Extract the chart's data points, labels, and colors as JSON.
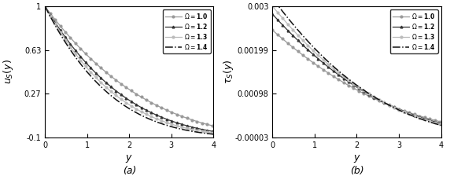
{
  "title_a": "(a)",
  "title_b": "(b)",
  "ylabel_a": "$u_S(y)$",
  "ylabel_b": "$\\tau_S(y)$",
  "xlabel": "$y$",
  "xlim": [
    0,
    4
  ],
  "ylim_a": [
    -0.1,
    1.0
  ],
  "ylim_b": [
    -3e-05,
    0.003
  ],
  "yticks_a": [
    -0.1,
    0.27,
    0.63,
    1.0
  ],
  "ytick_labels_a": [
    "-0.1",
    "0.27",
    "0.63",
    "1"
  ],
  "yticks_b": [
    -3e-05,
    0.00098,
    0.00199,
    0.003
  ],
  "ytick_labels_b": [
    "-0.00003",
    "0.00098",
    "0.00199",
    "0.003"
  ],
  "xticks": [
    0,
    1,
    2,
    3,
    4
  ],
  "xtick_labels": [
    "0",
    "1",
    "2",
    "3",
    "4"
  ],
  "gamma_values": [
    1.0,
    1.2,
    1.3,
    1.4
  ],
  "legend_labels": [
    "$\\Omega = \\mathbf{1.0}$",
    "$\\Omega = \\mathbf{1.2}$",
    "$\\Omega = \\mathbf{1.3}$",
    "$\\Omega = \\mathbf{1.4}$"
  ],
  "background_color": "#ffffff"
}
